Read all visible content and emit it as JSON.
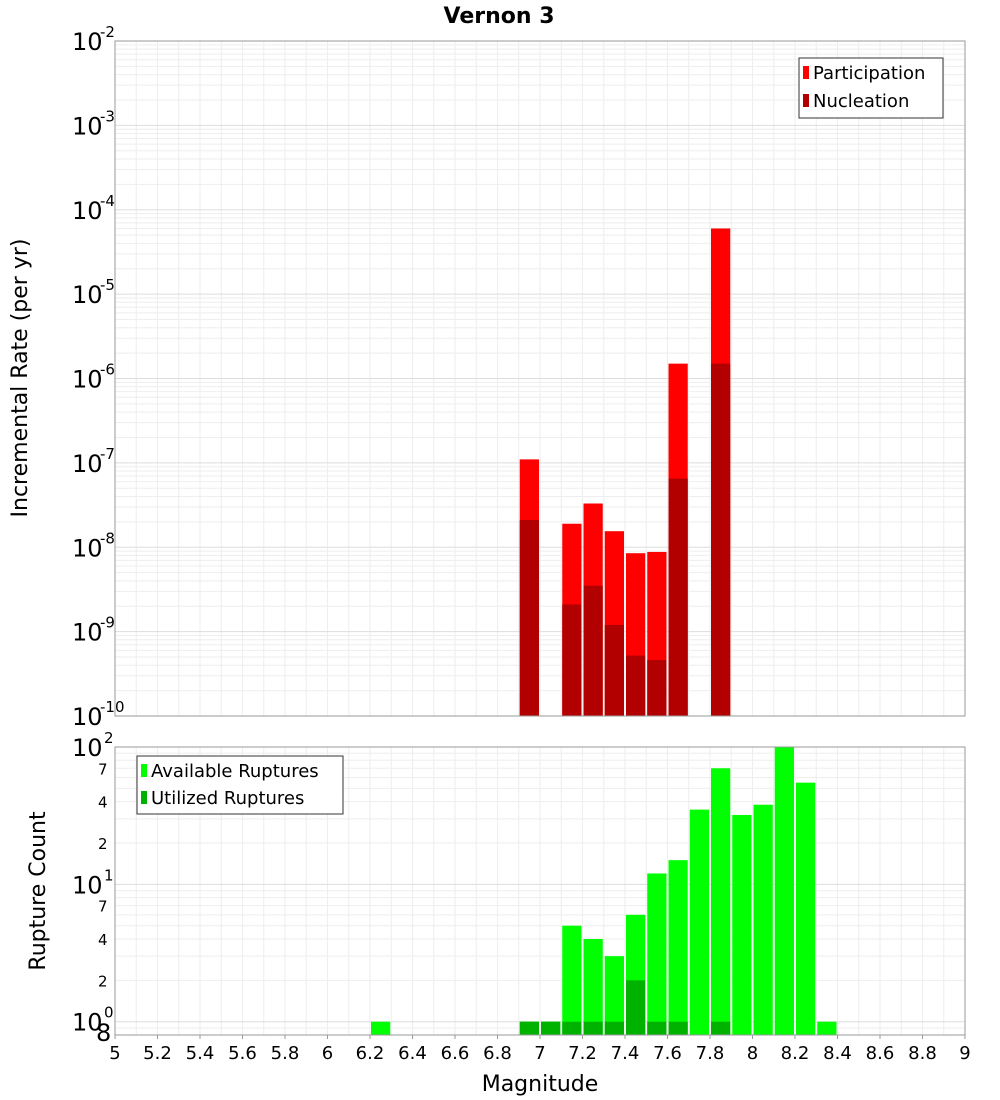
{
  "chart_data": [
    {
      "type": "bar",
      "title": "Vernon 3",
      "xlabel": "",
      "ylabel": "Incremental Rate (per yr)",
      "xlim": [
        5,
        9
      ],
      "ylim": [
        1e-10,
        0.01
      ],
      "yscale": "log",
      "grid": true,
      "bar_width": 0.1,
      "legend_position": "top-right",
      "y_tick_labels": [
        {
          "base": "10",
          "exp": "-2",
          "value": 0.01
        },
        {
          "base": "10",
          "exp": "-3",
          "value": 0.001
        },
        {
          "base": "10",
          "exp": "-4",
          "value": 0.0001
        },
        {
          "base": "10",
          "exp": "-5",
          "value": 1e-05
        },
        {
          "base": "10",
          "exp": "-6",
          "value": 1e-06
        },
        {
          "base": "10",
          "exp": "-7",
          "value": 1e-07
        },
        {
          "base": "10",
          "exp": "-8",
          "value": 1e-08
        },
        {
          "base": "10",
          "exp": "-9",
          "value": 1e-09
        },
        {
          "base": "10",
          "exp": "-10",
          "value": 1e-10
        }
      ],
      "series": [
        {
          "name": "Participation",
          "color": "#ff0000",
          "x": [
            6.95,
            7.15,
            7.25,
            7.35,
            7.45,
            7.55,
            7.65,
            7.85
          ],
          "values": [
            1.1e-07,
            1.9e-08,
            3.3e-08,
            1.55e-08,
            8.5e-09,
            8.8e-09,
            1.5e-06,
            6e-05
          ]
        },
        {
          "name": "Nucleation",
          "color": "#b20000",
          "x": [
            6.95,
            7.15,
            7.25,
            7.35,
            7.45,
            7.55,
            7.65,
            7.85
          ],
          "values": [
            2.1e-08,
            2.1e-09,
            3.5e-09,
            1.2e-09,
            5.2e-10,
            4.6e-10,
            6.5e-08,
            1.5e-06
          ]
        }
      ]
    },
    {
      "type": "bar",
      "title": "",
      "xlabel": "Magnitude",
      "ylabel": "Rupture Count",
      "xlim": [
        5,
        9
      ],
      "ylim": [
        0.8,
        100
      ],
      "yscale": "log",
      "grid": true,
      "bar_width": 0.1,
      "legend_position": "top-left",
      "y_tick_labels": [
        {
          "base": "10",
          "exp": "2",
          "value": 100
        },
        {
          "base": "10",
          "exp": "1",
          "value": 10
        },
        {
          "base": "10",
          "exp": "0",
          "value": 1
        }
      ],
      "y_minor_tick_labels": [
        {
          "label": "7",
          "value": 70
        },
        {
          "label": "4",
          "value": 40
        },
        {
          "label": "2",
          "value": 20
        },
        {
          "label": "7",
          "value": 7
        },
        {
          "label": "4",
          "value": 4
        },
        {
          "label": "2",
          "value": 2
        },
        {
          "label": "8",
          "value": 0.8
        }
      ],
      "x_tick_labels": [
        "5",
        "5.2",
        "5.4",
        "5.6",
        "5.8",
        "6",
        "6.2",
        "6.4",
        "6.6",
        "6.8",
        "7",
        "7.2",
        "7.4",
        "7.6",
        "7.8",
        "8",
        "8.2",
        "8.4",
        "8.6",
        "8.8",
        "9"
      ],
      "series": [
        {
          "name": "Available Ruptures",
          "color": "#00ff00",
          "x": [
            6.25,
            6.95,
            7.05,
            7.15,
            7.25,
            7.35,
            7.45,
            7.55,
            7.65,
            7.75,
            7.85,
            7.95,
            8.05,
            8.15,
            8.25,
            8.35
          ],
          "values": [
            1,
            1,
            1,
            5,
            4,
            3,
            6,
            12,
            15,
            35,
            70,
            32,
            38,
            100,
            55,
            1
          ]
        },
        {
          "name": "Utilized Ruptures",
          "color": "#00b200",
          "x": [
            6.95,
            7.05,
            7.15,
            7.25,
            7.35,
            7.45,
            7.55,
            7.65,
            7.85
          ],
          "values": [
            1,
            1,
            1,
            1,
            1,
            2,
            1,
            1,
            1
          ]
        }
      ]
    }
  ]
}
